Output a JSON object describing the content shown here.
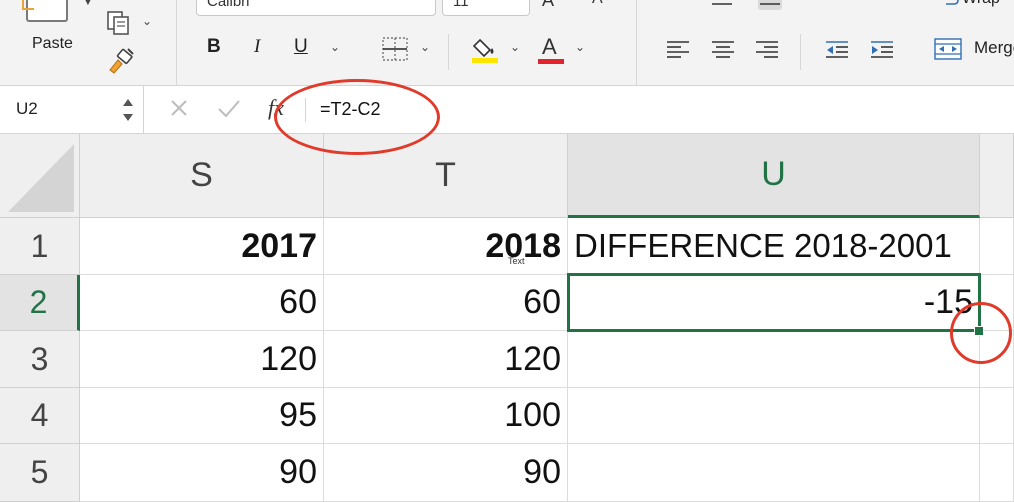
{
  "ribbon": {
    "clipboard": {
      "paste_label": "Paste"
    },
    "font": {
      "name_value": "Calibri",
      "size_value": "11"
    },
    "alignment": {
      "wrap_label": "Wrap",
      "merge_label": "Merge"
    },
    "colors": {
      "highlight": "#ffe600",
      "font_color": "#e0232d"
    }
  },
  "formula_bar": {
    "name_box": "U2",
    "fx_label": "fx",
    "formula": "=T2-C2"
  },
  "grid": {
    "columns": [
      "S",
      "T",
      "U"
    ],
    "selected_column": "U",
    "rows": [
      "1",
      "2",
      "3",
      "4",
      "5"
    ],
    "selected_row": "2",
    "cells": {
      "S1": "2017",
      "T1": "2018",
      "U1": "DIFFERENCE 2018-2001",
      "S2": "60",
      "T2": "60",
      "U2": "-15",
      "S3": "120",
      "T3": "120",
      "U3": "",
      "S4": "95",
      "T4": "100",
      "U4": "",
      "S5": "90",
      "T5": "90",
      "U5": ""
    },
    "hover_tooltip": "Text"
  },
  "theme": {
    "accent": "#217346",
    "annotation": "#e03a2a"
  }
}
